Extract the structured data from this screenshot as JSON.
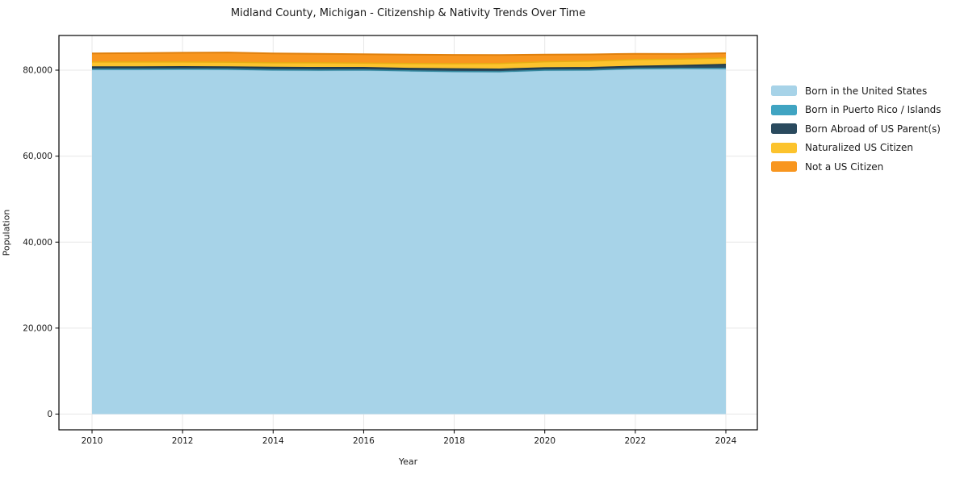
{
  "title": "Midland County, Michigan - Citizenship & Nativity Trends Over Time",
  "chart_data": {
    "type": "area",
    "stacked": true,
    "title": "Midland County, Michigan - Citizenship & Nativity Trends Over Time",
    "xlabel": "Year",
    "ylabel": "Population",
    "legend_position": "right-outside",
    "grid": true,
    "x": [
      2010,
      2011,
      2012,
      2013,
      2014,
      2015,
      2016,
      2017,
      2018,
      2019,
      2020,
      2021,
      2022,
      2023,
      2024
    ],
    "x_ticks": [
      2010,
      2012,
      2014,
      2016,
      2018,
      2020,
      2022,
      2024
    ],
    "y_ticks": [
      0,
      20000,
      40000,
      60000,
      80000
    ],
    "xlim": [
      2009.3,
      2024.7
    ],
    "ylim": [
      -3700,
      88100
    ],
    "series": [
      {
        "name": "Born in the United States",
        "color": "#a7d3e8",
        "edge": "#8fc3dc",
        "values": [
          80100,
          80100,
          80150,
          80100,
          79950,
          79900,
          79950,
          79750,
          79600,
          79550,
          79900,
          79950,
          80250,
          80300,
          80250
        ]
      },
      {
        "name": "Born in Puerto Rico / Islands",
        "color": "#40a4c2",
        "edge": "#35899f",
        "values": [
          100,
          100,
          100,
          100,
          100,
          100,
          100,
          100,
          100,
          100,
          100,
          100,
          100,
          120,
          180
        ]
      },
      {
        "name": "Born Abroad of US Parent(s)",
        "color": "#2a4a5e",
        "edge": "#1e3747",
        "values": [
          550,
          550,
          550,
          550,
          600,
          600,
          550,
          550,
          600,
          600,
          550,
          550,
          550,
          650,
          900
        ]
      },
      {
        "name": "Naturalized US Citizen",
        "color": "#fcc32d",
        "edge": "#e8ae14",
        "values": [
          1150,
          1150,
          1100,
          1100,
          1050,
          1100,
          1050,
          1150,
          1200,
          1300,
          1400,
          1500,
          1550,
          1500,
          1500
        ]
      },
      {
        "name": "Not a US Citizen",
        "color": "#f8961f",
        "edge": "#e0800c",
        "values": [
          2000,
          2050,
          2150,
          2250,
          2200,
          2100,
          2050,
          2050,
          2050,
          1950,
          1650,
          1550,
          1350,
          1200,
          1100
        ]
      }
    ]
  }
}
